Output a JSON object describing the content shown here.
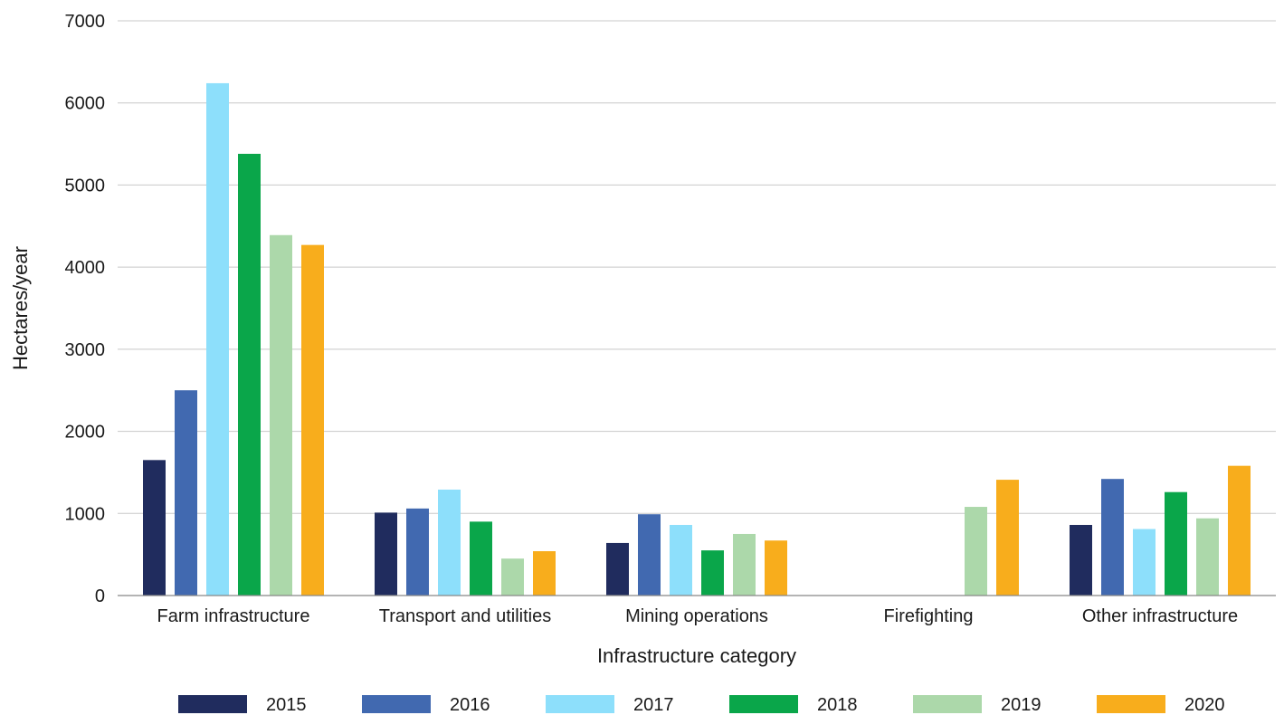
{
  "chart_data": {
    "type": "bar",
    "title": "",
    "xlabel": "Infrastructure category",
    "ylabel": "Hectares/year",
    "ylim": [
      0,
      7000
    ],
    "yticks": [
      0,
      1000,
      2000,
      3000,
      4000,
      5000,
      6000,
      7000
    ],
    "grid": true,
    "legend_position": "bottom",
    "categories": [
      "Farm infrastructure",
      "Transport and utilities",
      "Mining operations",
      "Firefighting",
      "Other infrastructure"
    ],
    "series": [
      {
        "name": "2015",
        "color": "#202c5e",
        "values": [
          1650,
          1010,
          640,
          0,
          860
        ]
      },
      {
        "name": "2016",
        "color": "#4169b0",
        "values": [
          2500,
          1060,
          990,
          0,
          1420
        ]
      },
      {
        "name": "2017",
        "color": "#8ddffb",
        "values": [
          6240,
          1290,
          860,
          0,
          810
        ]
      },
      {
        "name": "2018",
        "color": "#0aa64a",
        "values": [
          5380,
          900,
          550,
          0,
          1260
        ]
      },
      {
        "name": "2019",
        "color": "#acd8aa",
        "values": [
          4390,
          450,
          750,
          1080,
          940
        ]
      },
      {
        "name": "2020",
        "color": "#f8ad1c",
        "values": [
          4270,
          540,
          670,
          1410,
          1580
        ]
      }
    ]
  }
}
